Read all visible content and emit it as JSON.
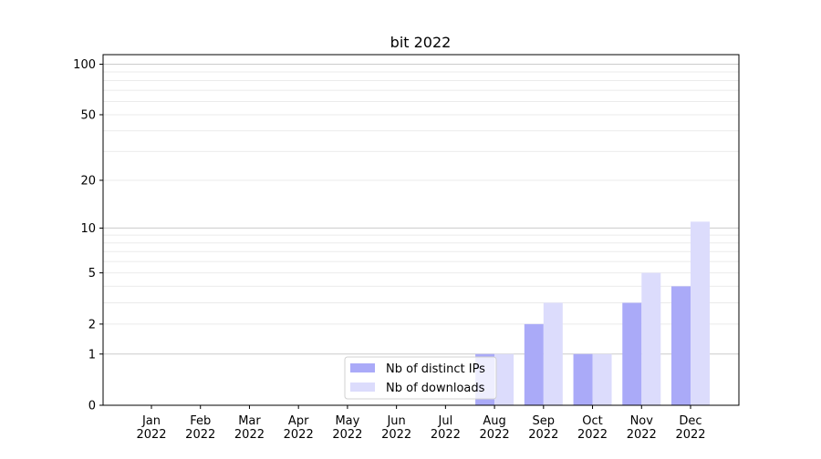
{
  "chart_data": {
    "type": "bar",
    "title": "bit 2022",
    "xlabel": "",
    "ylabel": "",
    "yscale": "log(1+y)",
    "ylim": [
      0,
      114
    ],
    "yticks": [
      0,
      1,
      2,
      5,
      10,
      20,
      50,
      100
    ],
    "grid": true,
    "legend": "lower-center",
    "categories": [
      "Jan\n2022",
      "Feb\n2022",
      "Mar\n2022",
      "Apr\n2022",
      "May\n2022",
      "Jun\n2022",
      "Jul\n2022",
      "Aug\n2022",
      "Sep\n2022",
      "Oct\n2022",
      "Nov\n2022",
      "Dec\n2022"
    ],
    "series": [
      {
        "name": "Nb of distinct IPs",
        "color": "#aaaaf8",
        "values": [
          0,
          0,
          0,
          0,
          0,
          0,
          0,
          1,
          2,
          1,
          3,
          4
        ]
      },
      {
        "name": "Nb of downloads",
        "color": "#dcdcfc",
        "values": [
          0,
          0,
          0,
          0,
          0,
          0,
          0,
          1,
          3,
          1,
          5,
          11
        ]
      }
    ]
  }
}
